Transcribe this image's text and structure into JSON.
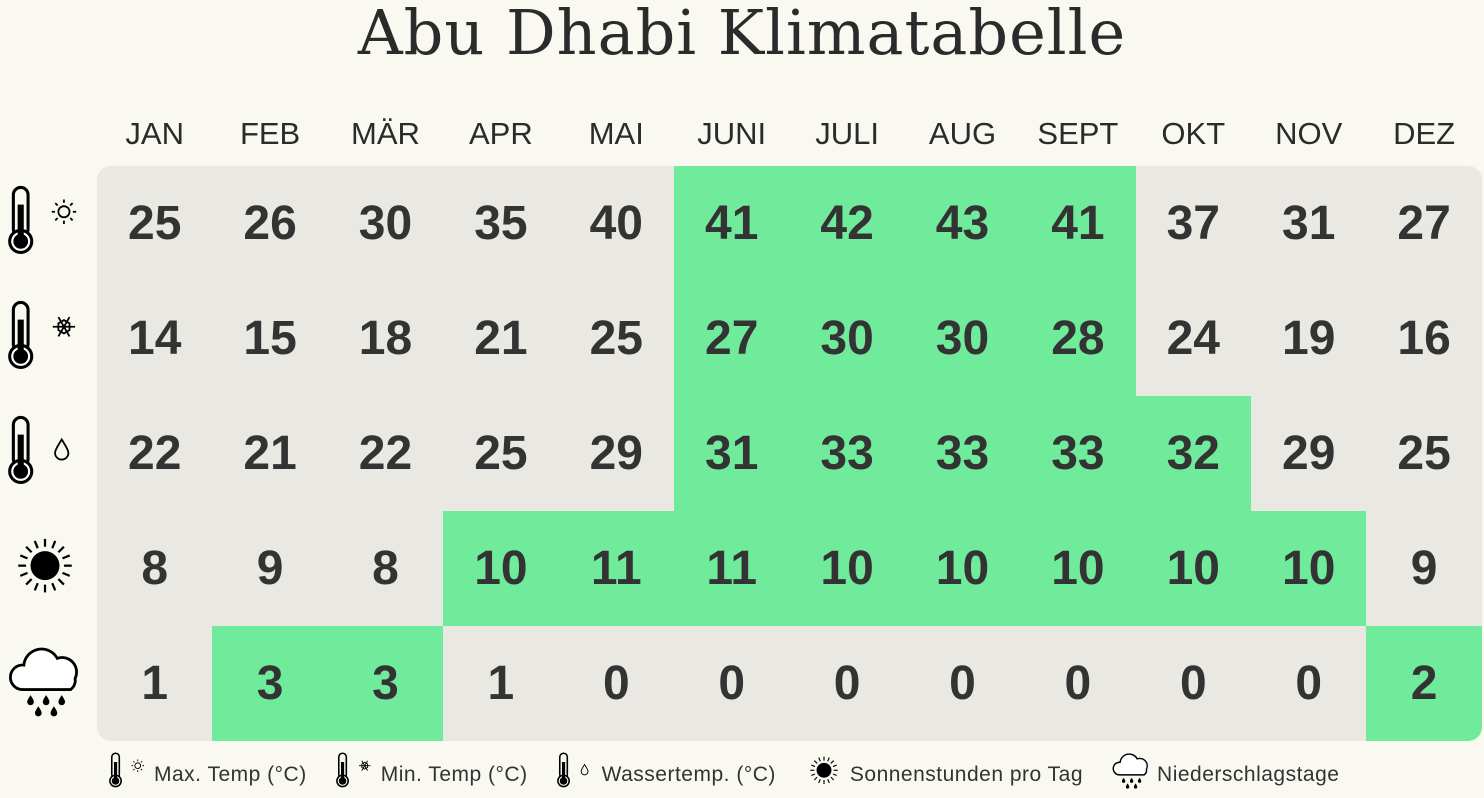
{
  "title": "Abu Dhabi Klimatabelle",
  "colors": {
    "background": "#f9f8f1",
    "table": "#e9e8e2",
    "highlight": "#6feb9b",
    "text": "#333333"
  },
  "chart_data": {
    "type": "table",
    "title": "Abu Dhabi Klimatabelle",
    "columns": [
      "JAN",
      "FEB",
      "MÄR",
      "APR",
      "MAI",
      "JUNI",
      "JULI",
      "AUG",
      "SEPT",
      "OKT",
      "NOV",
      "DEZ"
    ],
    "rows": [
      {
        "icon": "thermometer-sun-icon",
        "legend": "Max. Temp (°C)",
        "values": [
          25,
          26,
          30,
          35,
          40,
          41,
          42,
          43,
          41,
          37,
          31,
          27
        ],
        "highlighted": [
          5,
          6,
          7,
          8
        ]
      },
      {
        "icon": "thermometer-snowflake-icon",
        "legend": "Min. Temp (°C)",
        "values": [
          14,
          15,
          18,
          21,
          25,
          27,
          30,
          30,
          28,
          24,
          19,
          16
        ],
        "highlighted": [
          5,
          6,
          7,
          8
        ]
      },
      {
        "icon": "thermometer-drop-icon",
        "legend": "Wassertemp. (°C)",
        "values": [
          22,
          21,
          22,
          25,
          29,
          31,
          33,
          33,
          33,
          32,
          29,
          25
        ],
        "highlighted": [
          5,
          6,
          7,
          8,
          9
        ]
      },
      {
        "icon": "sun-icon",
        "legend": "Sonnenstunden pro Tag",
        "values": [
          8,
          9,
          8,
          10,
          11,
          11,
          10,
          10,
          10,
          10,
          10,
          9
        ],
        "highlighted": [
          3,
          4,
          5,
          6,
          7,
          8,
          9,
          10
        ]
      },
      {
        "icon": "rain-cloud-icon",
        "legend": "Niederschlagstage",
        "values": [
          1,
          3,
          3,
          1,
          0,
          0,
          0,
          0,
          0,
          0,
          0,
          2
        ],
        "highlighted": [
          1,
          2,
          11
        ]
      }
    ]
  }
}
